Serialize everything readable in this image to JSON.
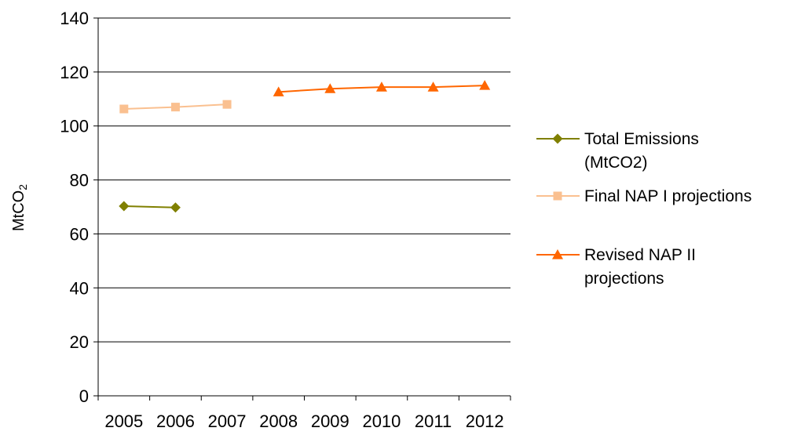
{
  "chart_data": {
    "type": "line",
    "title": "",
    "xlabel": "",
    "ylabel": "MtCO2",
    "ylim": [
      0,
      140
    ],
    "y_ticks": [
      "0",
      "20",
      "40",
      "60",
      "80",
      "100",
      "120",
      "140"
    ],
    "categories": [
      "2005",
      "2006",
      "2007",
      "2008",
      "2009",
      "2010",
      "2011",
      "2012"
    ],
    "grid": true,
    "legend_position": "right",
    "series": [
      {
        "name": "Total Emissions (MtCO2)",
        "legend_lines": [
          "Total Emissions",
          "(MtCO2)"
        ],
        "marker": "diamond",
        "color": "#808000",
        "values": [
          70.3,
          69.8,
          null,
          null,
          null,
          null,
          null,
          null
        ]
      },
      {
        "name": "Final NAP I projections",
        "legend_lines": [
          "Final NAP I projections"
        ],
        "marker": "square",
        "color": "#fac090",
        "values": [
          106.3,
          107,
          108,
          null,
          null,
          null,
          null,
          null
        ]
      },
      {
        "name": "Revised NAP II projections",
        "legend_lines": [
          "Revised NAP II",
          "projections"
        ],
        "marker": "triangle",
        "color": "#ff6600",
        "values": [
          null,
          null,
          null,
          112.6,
          113.8,
          114.4,
          114.4,
          115
        ]
      }
    ]
  }
}
